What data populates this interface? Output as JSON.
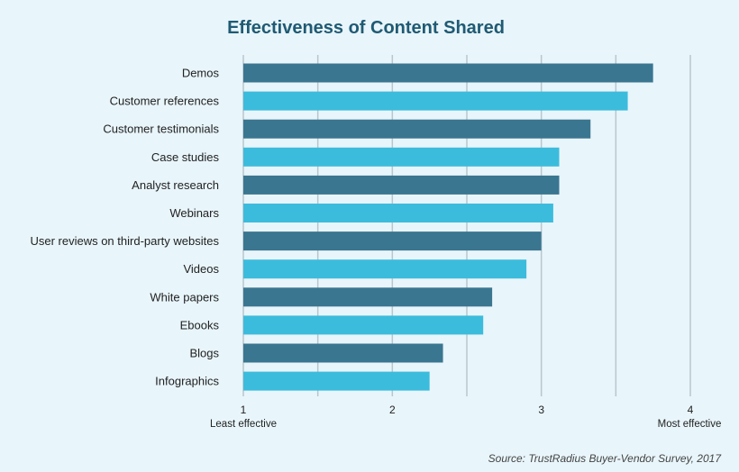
{
  "chart_data": {
    "type": "bar",
    "orientation": "horizontal",
    "title": "Effectiveness of Content Shared",
    "categories": [
      "Demos",
      "Customer references",
      "Customer testimonials",
      "Case studies",
      "Analyst research",
      "Webinars",
      "User reviews on third-party websites",
      "Videos",
      "White papers",
      "Ebooks",
      "Blogs",
      "Infographics"
    ],
    "values": [
      3.75,
      3.58,
      3.33,
      3.12,
      3.12,
      3.08,
      3.0,
      2.9,
      2.67,
      2.61,
      2.34,
      2.25
    ],
    "xlim": [
      1,
      4
    ],
    "xticks": [
      "1",
      "2",
      "3",
      "4"
    ],
    "x_low_label": "Least effective",
    "x_high_label": "Most effective",
    "grid": true,
    "colors": [
      "#3a7690",
      "#3cbcdc"
    ],
    "background": "#e8f5fb"
  },
  "source": "Source: TrustRadius Buyer-Vendor Survey, 2017"
}
